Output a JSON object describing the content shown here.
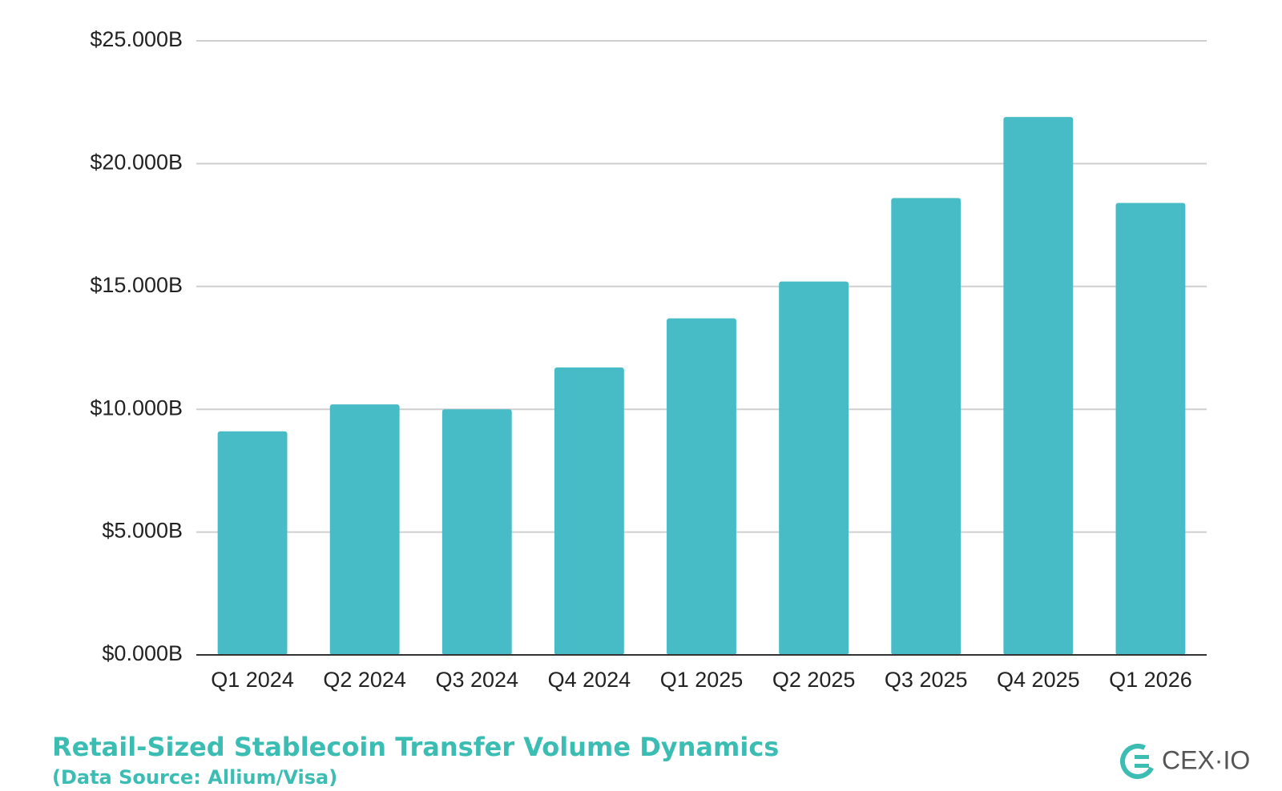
{
  "chart_data": {
    "type": "bar",
    "title": "Retail-Sized Stablecoin Transfer Volume Dynamics",
    "subtitle": "(Data Source: Allium/Visa)",
    "brand": "CEX·IO",
    "categories": [
      "Q1 2024",
      "Q2 2024",
      "Q3 2024",
      "Q4 2024",
      "Q1 2025",
      "Q2 2025",
      "Q3 2025",
      "Q4 2025",
      "Q1 2026"
    ],
    "values": [
      9.1,
      10.2,
      10.0,
      11.7,
      13.7,
      15.2,
      18.6,
      21.9,
      18.4
    ],
    "color": "#47bcc6",
    "ylim": [
      0,
      25
    ],
    "yticks": [
      {
        "value": 0,
        "label": "$0.000B"
      },
      {
        "value": 5,
        "label": "$5.000B"
      },
      {
        "value": 10,
        "label": "$10.000B"
      },
      {
        "value": 15,
        "label": "$15.000B"
      },
      {
        "value": 20,
        "label": "$20.000B"
      },
      {
        "value": 25,
        "label": "$25.000B"
      }
    ],
    "grid": true
  }
}
